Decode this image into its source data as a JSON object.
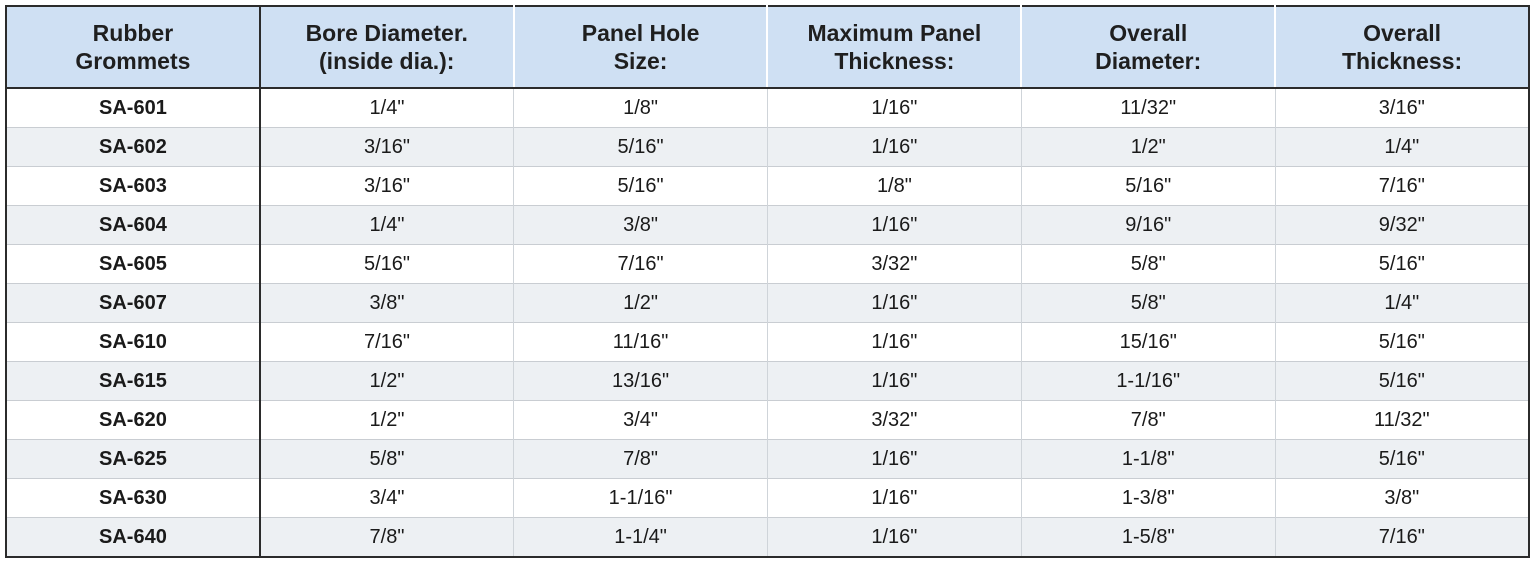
{
  "table": {
    "header": [
      [
        "Rubber",
        "Grommets"
      ],
      [
        "Bore Diameter.",
        "(inside dia.):"
      ],
      [
        "Panel Hole",
        "Size:"
      ],
      [
        "Maximum Panel",
        "Thickness:"
      ],
      [
        "Overall",
        "Diameter:"
      ],
      [
        "Overall",
        "Thickness:"
      ]
    ],
    "rows": [
      [
        "SA-601",
        "1/4\"",
        "1/8\"",
        "1/16\"",
        "11/32\"",
        "3/16\""
      ],
      [
        "SA-602",
        "3/16\"",
        "5/16\"",
        "1/16\"",
        "1/2\"",
        "1/4\""
      ],
      [
        "SA-603",
        "3/16\"",
        "5/16\"",
        "1/8\"",
        "5/16\"",
        "7/16\""
      ],
      [
        "SA-604",
        "1/4\"",
        "3/8\"",
        "1/16\"",
        "9/16\"",
        "9/32\""
      ],
      [
        "SA-605",
        "5/16\"",
        "7/16\"",
        "3/32\"",
        "5/8\"",
        "5/16\""
      ],
      [
        "SA-607",
        "3/8\"",
        "1/2\"",
        "1/16\"",
        "5/8\"",
        "1/4\""
      ],
      [
        "SA-610",
        "7/16\"",
        "11/16\"",
        "1/16\"",
        "15/16\"",
        "5/16\""
      ],
      [
        "SA-615",
        "1/2\"",
        "13/16\"",
        "1/16\"",
        "1-1/16\"",
        "5/16\""
      ],
      [
        "SA-620",
        "1/2\"",
        "3/4\"",
        "3/32\"",
        "7/8\"",
        "11/32\""
      ],
      [
        "SA-625",
        "5/8\"",
        "7/8\"",
        "1/16\"",
        "1-1/8\"",
        "5/16\""
      ],
      [
        "SA-630",
        "3/4\"",
        "1-1/16\"",
        "1/16\"",
        "1-3/8\"",
        "3/8\""
      ],
      [
        "SA-640",
        "7/8\"",
        "1-1/4\"",
        "1/16\"",
        "1-5/8\"",
        "7/16\""
      ]
    ]
  }
}
